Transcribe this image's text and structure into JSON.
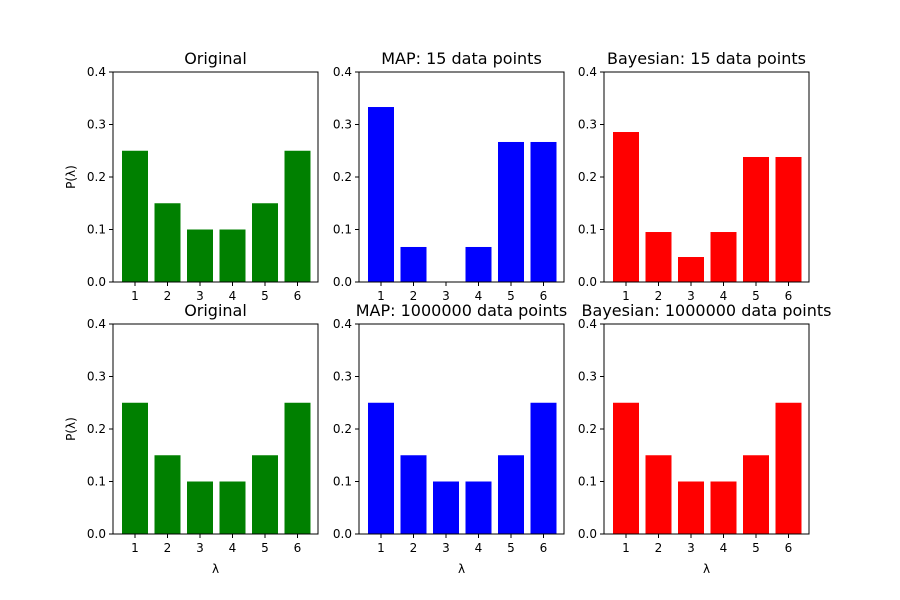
{
  "chart_data": [
    {
      "type": "bar",
      "title": "Original",
      "categories": [
        "1",
        "2",
        "3",
        "4",
        "5",
        "6"
      ],
      "values": [
        0.25,
        0.15,
        0.1,
        0.1,
        0.15,
        0.25
      ],
      "xlabel": "",
      "ylabel": "P(λ)",
      "ylim": [
        0,
        0.4
      ],
      "yticks": [
        "0.0",
        "0.1",
        "0.2",
        "0.3",
        "0.4"
      ],
      "color": "#008000",
      "grid": false
    },
    {
      "type": "bar",
      "title": "MAP: 15 data points",
      "categories": [
        "1",
        "2",
        "3",
        "4",
        "5",
        "6"
      ],
      "values": [
        0.3333,
        0.0667,
        0.0,
        0.0667,
        0.2667,
        0.2667
      ],
      "xlabel": "",
      "ylabel": "",
      "ylim": [
        0,
        0.4
      ],
      "yticks": [
        "0.0",
        "0.1",
        "0.2",
        "0.3",
        "0.4"
      ],
      "color": "#0000ff",
      "grid": false
    },
    {
      "type": "bar",
      "title": "Bayesian: 15 data points",
      "categories": [
        "1",
        "2",
        "3",
        "4",
        "5",
        "6"
      ],
      "values": [
        0.2857,
        0.0952,
        0.0476,
        0.0952,
        0.2381,
        0.2381
      ],
      "xlabel": "",
      "ylabel": "",
      "ylim": [
        0,
        0.4
      ],
      "yticks": [
        "0.0",
        "0.1",
        "0.2",
        "0.3",
        "0.4"
      ],
      "color": "#ff0000",
      "grid": false
    },
    {
      "type": "bar",
      "title": "Original",
      "categories": [
        "1",
        "2",
        "3",
        "4",
        "5",
        "6"
      ],
      "values": [
        0.25,
        0.15,
        0.1,
        0.1,
        0.15,
        0.25
      ],
      "xlabel": "λ",
      "ylabel": "P(λ)",
      "ylim": [
        0,
        0.4
      ],
      "yticks": [
        "0.0",
        "0.1",
        "0.2",
        "0.3",
        "0.4"
      ],
      "color": "#008000",
      "grid": false
    },
    {
      "type": "bar",
      "title": "MAP: 1000000 data points",
      "categories": [
        "1",
        "2",
        "3",
        "4",
        "5",
        "6"
      ],
      "values": [
        0.25,
        0.15,
        0.1,
        0.1,
        0.15,
        0.25
      ],
      "xlabel": "λ",
      "ylabel": "",
      "ylim": [
        0,
        0.4
      ],
      "yticks": [
        "0.0",
        "0.1",
        "0.2",
        "0.3",
        "0.4"
      ],
      "color": "#0000ff",
      "grid": false
    },
    {
      "type": "bar",
      "title": "Bayesian: 1000000 data points",
      "categories": [
        "1",
        "2",
        "3",
        "4",
        "5",
        "6"
      ],
      "values": [
        0.25,
        0.15,
        0.1,
        0.1,
        0.15,
        0.25
      ],
      "xlabel": "λ",
      "ylabel": "",
      "ylim": [
        0,
        0.4
      ],
      "yticks": [
        "0.0",
        "0.1",
        "0.2",
        "0.3",
        "0.4"
      ],
      "color": "#ff0000",
      "grid": false
    }
  ]
}
